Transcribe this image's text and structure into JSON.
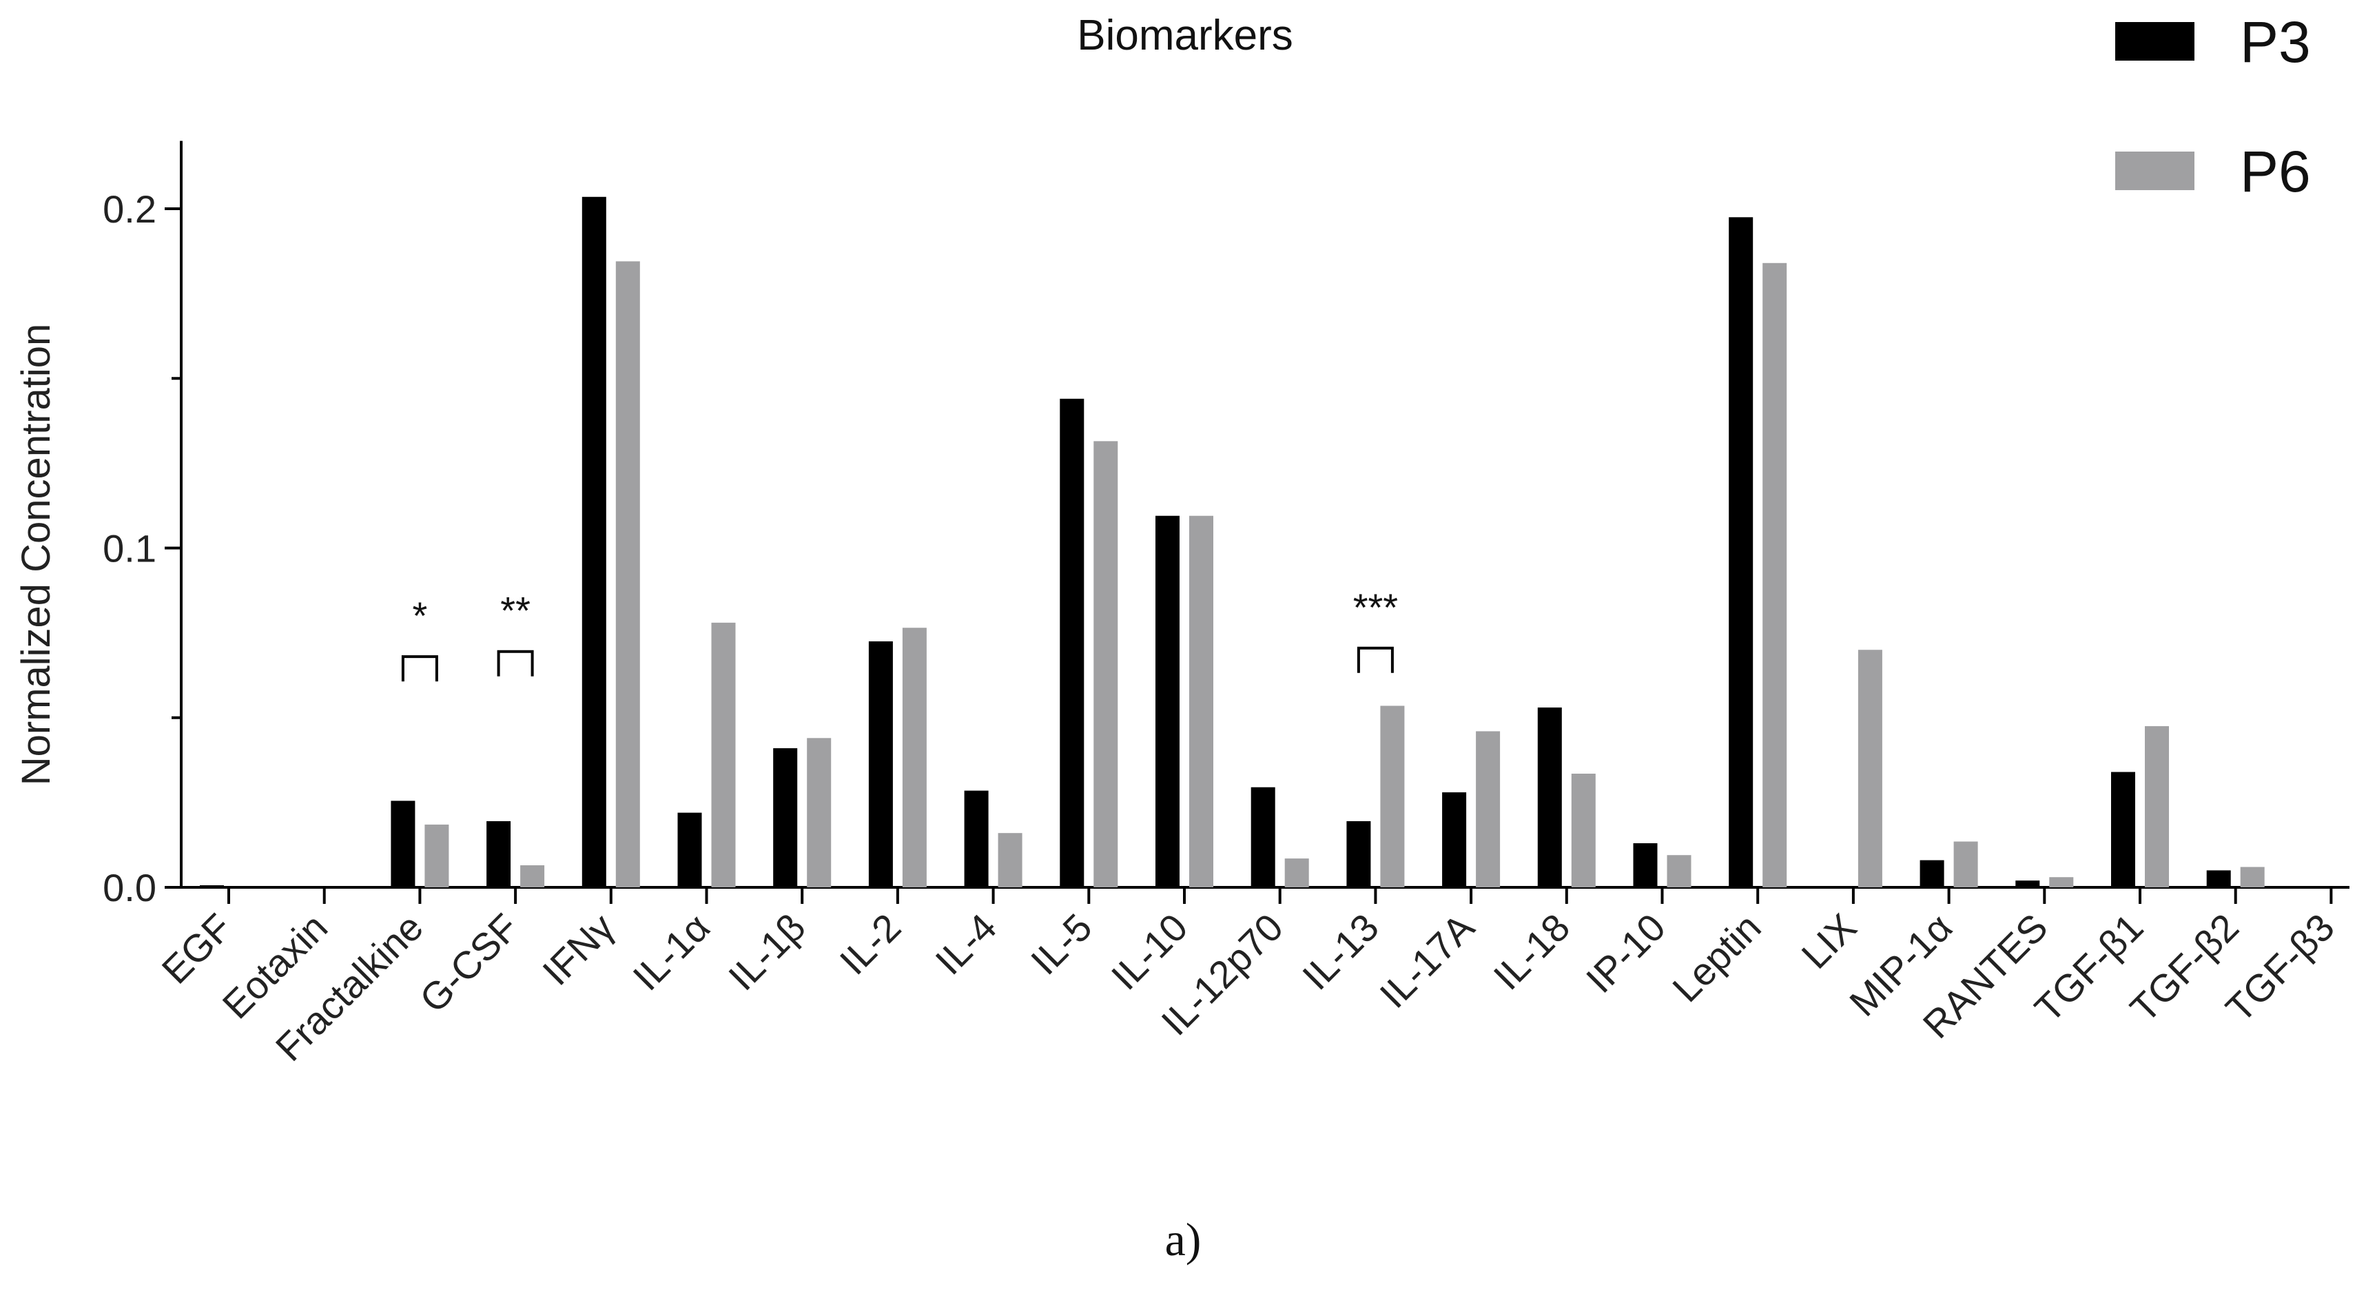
{
  "chart_data": {
    "type": "bar",
    "title": "Biomarkers",
    "ylabel": "Normalized Concentration",
    "xlabel": "",
    "caption": "a)",
    "ylim": [
      0,
      0.22
    ],
    "yticks": [
      0.0,
      0.1,
      0.2
    ],
    "ytick_labels": [
      "0.0",
      "0.1",
      "0.2"
    ],
    "grid": false,
    "legend_position": "top-right",
    "categories": [
      "EGF",
      "Eotaxin",
      "Fractalkine",
      "G-CSF",
      "IFNγ",
      "IL-1α",
      "IL-1β",
      "IL-2",
      "IL-4",
      "IL-5",
      "IL-10",
      "IL-12p70",
      "IL-13",
      "IL-17A",
      "IL-18",
      "IP-10",
      "Leptin",
      "LIX",
      "MIP-1α",
      "RANTES",
      "TGF-β1",
      "TGF-β2",
      "TGF-β3"
    ],
    "series": [
      {
        "name": "P3",
        "color": "#000000",
        "values": [
          0.0004,
          0.0,
          0.0255,
          0.0195,
          0.2035,
          0.022,
          0.041,
          0.0725,
          0.0285,
          0.144,
          0.1095,
          0.0295,
          0.0195,
          0.028,
          0.053,
          0.013,
          0.1975,
          0.0,
          0.008,
          0.002,
          0.034,
          0.005,
          0.0
        ]
      },
      {
        "name": "P6",
        "color": "#a0a0a2",
        "values": [
          0.0,
          0.0,
          0.0185,
          0.0065,
          0.1845,
          0.078,
          0.044,
          0.0765,
          0.016,
          0.1315,
          0.1095,
          0.0085,
          0.0535,
          0.046,
          0.0335,
          0.0095,
          0.184,
          0.07,
          0.0135,
          0.003,
          0.0475,
          0.006,
          0.0
        ]
      }
    ],
    "annotations": [
      {
        "label": "*",
        "category": "Fractalkine",
        "bracket_top": 0.068
      },
      {
        "label": "**",
        "category": "G-CSF",
        "bracket_top": 0.0695
      },
      {
        "label": "***",
        "category": "IL-13",
        "bracket_top": 0.0705
      }
    ]
  }
}
